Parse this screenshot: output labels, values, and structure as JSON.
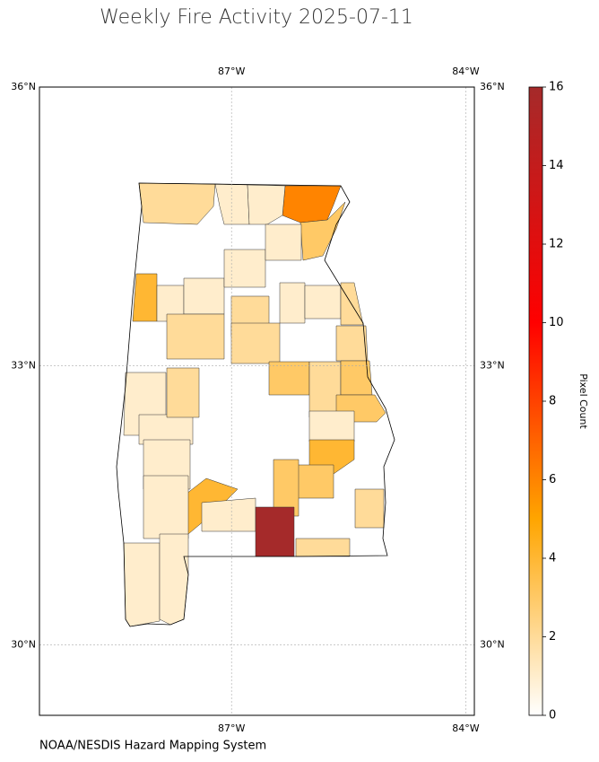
{
  "title": "Weekly Fire Activity 2025-07-11",
  "credit": "NOAA/NESDIS Hazard Mapping System",
  "map": {
    "xlim": [
      -89.46,
      -83.89
    ],
    "ylim": [
      29.24,
      36
    ],
    "xticks": [
      {
        "value": -87,
        "label": "87°W"
      },
      {
        "value": -84,
        "label": "84°W"
      }
    ],
    "yticks": [
      {
        "value": 36,
        "label": "36°N"
      },
      {
        "value": 33,
        "label": "33°N"
      },
      {
        "value": 30,
        "label": "30°N"
      }
    ],
    "grid": true,
    "county_values": [
      6,
      2,
      1,
      1,
      3,
      4,
      1,
      1,
      1,
      2,
      1,
      2,
      2,
      1,
      1,
      2,
      2,
      3,
      2,
      3,
      3,
      1,
      4,
      3,
      3,
      4,
      1,
      16,
      2,
      2,
      1,
      1,
      1,
      1,
      1,
      1,
      2
    ]
  },
  "colorbar": {
    "label": "Pixel Count",
    "lim": [
      0,
      16
    ],
    "ticks": [
      0,
      2,
      4,
      6,
      8,
      10,
      12,
      14,
      16
    ],
    "colormap": [
      {
        "value": 0,
        "color": "#ffffff"
      },
      {
        "value": 5,
        "color": "#ffa500"
      },
      {
        "value": 10,
        "color": "#ff0000"
      },
      {
        "value": 16,
        "color": "#a52a2a"
      }
    ]
  }
}
